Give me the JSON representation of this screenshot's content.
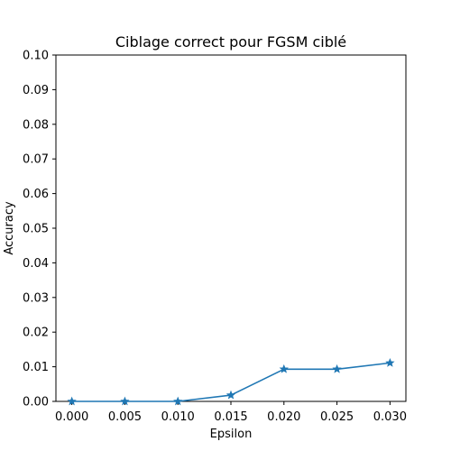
{
  "chart_data": {
    "type": "line",
    "title": "Ciblage correct pour FGSM ciblé",
    "xlabel": "Epsilon",
    "ylabel": "Accuracy",
    "x": [
      0.0,
      0.005,
      0.01,
      0.015,
      0.02,
      0.025,
      0.03
    ],
    "series": [
      {
        "values": [
          0.0,
          0.0,
          0.0,
          0.0018,
          0.0093,
          0.0093,
          0.0111
        ],
        "color": "#1f77b4",
        "marker": "star"
      }
    ],
    "xlim": [
      -0.0015,
      0.0315
    ],
    "ylim": [
      0.0,
      0.1
    ],
    "xticks": [
      "0.000",
      "0.005",
      "0.010",
      "0.015",
      "0.020",
      "0.025",
      "0.030"
    ],
    "yticks": [
      "0.00",
      "0.01",
      "0.02",
      "0.03",
      "0.04",
      "0.05",
      "0.06",
      "0.07",
      "0.08",
      "0.09",
      "0.10"
    ],
    "grid": false,
    "legend": "none"
  }
}
